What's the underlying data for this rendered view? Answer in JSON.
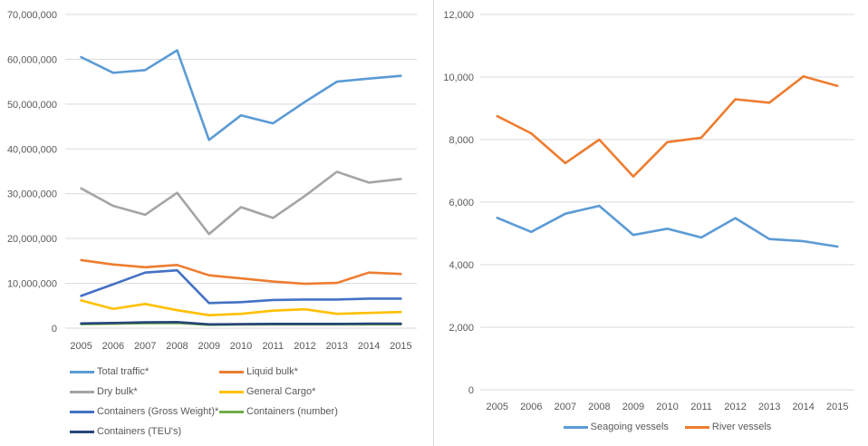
{
  "page": {
    "background": "#ffffff",
    "divider_color": "#d9d9d9",
    "axis_text_color": "#595959",
    "gridline_color": "#d9d9d9"
  },
  "chart_data": [
    {
      "name": "cargo-traffic-chart",
      "type": "line",
      "title": "",
      "xlabel": "",
      "ylabel": "",
      "categories": [
        "2005",
        "2006",
        "2007",
        "2008",
        "2009",
        "2010",
        "2011",
        "2012",
        "2013",
        "2014",
        "2015"
      ],
      "ylim": [
        0,
        70000000
      ],
      "ytick_step": 10000000,
      "yticks": [
        0,
        10000000,
        20000000,
        30000000,
        40000000,
        50000000,
        60000000,
        70000000
      ],
      "grid": true,
      "legend_position": "bottom-left-two-columns",
      "series": [
        {
          "name": "Total traffic*",
          "color": "#5B9BD5",
          "values": [
            60500000,
            57000000,
            57600000,
            62000000,
            42000000,
            47500000,
            45700000,
            50500000,
            55000000,
            55700000,
            56300000
          ]
        },
        {
          "name": "Liquid bulk*",
          "color": "#ED7D31",
          "values": [
            15200000,
            14200000,
            13600000,
            14100000,
            11800000,
            11100000,
            10400000,
            9900000,
            10100000,
            12400000,
            12100000
          ]
        },
        {
          "name": "Dry bulk*",
          "color": "#A5A5A5",
          "values": [
            31200000,
            27300000,
            25300000,
            30200000,
            21000000,
            27000000,
            24600000,
            29500000,
            34900000,
            32500000,
            33300000
          ]
        },
        {
          "name": "General Cargo*",
          "color": "#FFC000",
          "values": [
            6200000,
            4300000,
            5400000,
            4000000,
            2900000,
            3200000,
            3900000,
            4200000,
            3200000,
            3400000,
            3600000
          ]
        },
        {
          "name": "Containers (Gross Weight)*",
          "color": "#4472C4",
          "values": [
            7200000,
            9800000,
            12400000,
            12900000,
            5600000,
            5800000,
            6300000,
            6400000,
            6400000,
            6600000,
            6600000
          ]
        },
        {
          "name": "Containers (number)",
          "color": "#70AD47",
          "values": [
            900000,
            1000000,
            1100000,
            1150000,
            750000,
            800000,
            850000,
            850000,
            850000,
            850000,
            850000
          ]
        },
        {
          "name": "Containers (TEU's)",
          "color": "#264478",
          "values": [
            1050000,
            1150000,
            1300000,
            1350000,
            850000,
            900000,
            950000,
            950000,
            950000,
            1000000,
            1000000
          ]
        }
      ]
    },
    {
      "name": "vessels-chart",
      "type": "line",
      "title": "",
      "xlabel": "",
      "ylabel": "",
      "categories": [
        "2005",
        "2006",
        "2007",
        "2008",
        "2009",
        "2010",
        "2011",
        "2012",
        "2013",
        "2014",
        "2015"
      ],
      "ylim": [
        0,
        12000
      ],
      "ytick_step": 2000,
      "yticks": [
        0,
        2000,
        4000,
        6000,
        8000,
        10000,
        12000
      ],
      "grid": true,
      "legend_position": "bottom-center",
      "series": [
        {
          "name": "Seagoing vessels",
          "color": "#5B9BD5",
          "values": [
            5500,
            5050,
            5630,
            5880,
            4950,
            5150,
            4870,
            5490,
            4820,
            4750,
            4580
          ]
        },
        {
          "name": "River vessels",
          "color": "#ED7D31",
          "values": [
            8750,
            8200,
            7250,
            8000,
            6820,
            7920,
            8060,
            9290,
            9180,
            10020,
            9720
          ]
        }
      ]
    }
  ]
}
